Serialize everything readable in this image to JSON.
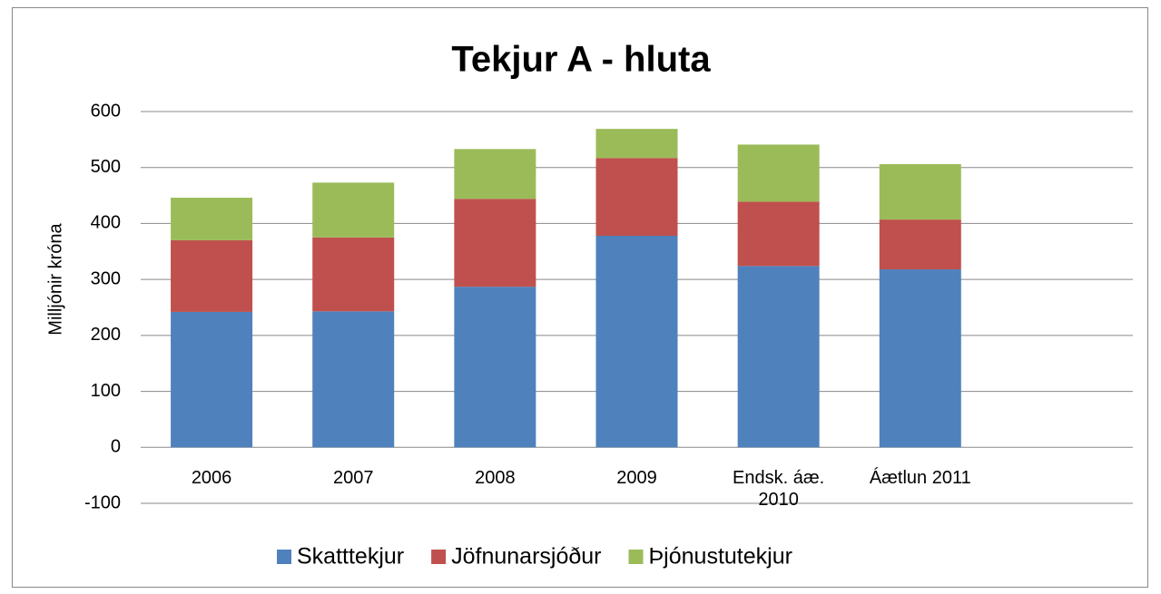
{
  "chart_data": {
    "type": "stacked_bar",
    "title": "Tekjur   A - hluta",
    "y_label": "Milljónir króna",
    "categories": [
      "2006",
      "2007",
      "2008",
      "2009",
      "Endsk. áæ. 2010",
      "Áætlun 2011",
      null
    ],
    "series": [
      {
        "name": "Skatttekjur",
        "color": "#4f81bd",
        "values": [
          242,
          243,
          287,
          378,
          324,
          318,
          null
        ]
      },
      {
        "name": "Jöfnunarsjóður",
        "color": "#c0504d",
        "values": [
          128,
          132,
          157,
          139,
          115,
          89,
          null
        ]
      },
      {
        "name": "Þjónustutekjur",
        "color": "#9bbb59",
        "values": [
          76,
          98,
          89,
          52,
          102,
          99,
          null
        ]
      }
    ],
    "ylim": [
      -100,
      600
    ],
    "yticks": [
      -100,
      0,
      100,
      200,
      300,
      400,
      500,
      600
    ],
    "grid": true,
    "legend": "bottom"
  }
}
